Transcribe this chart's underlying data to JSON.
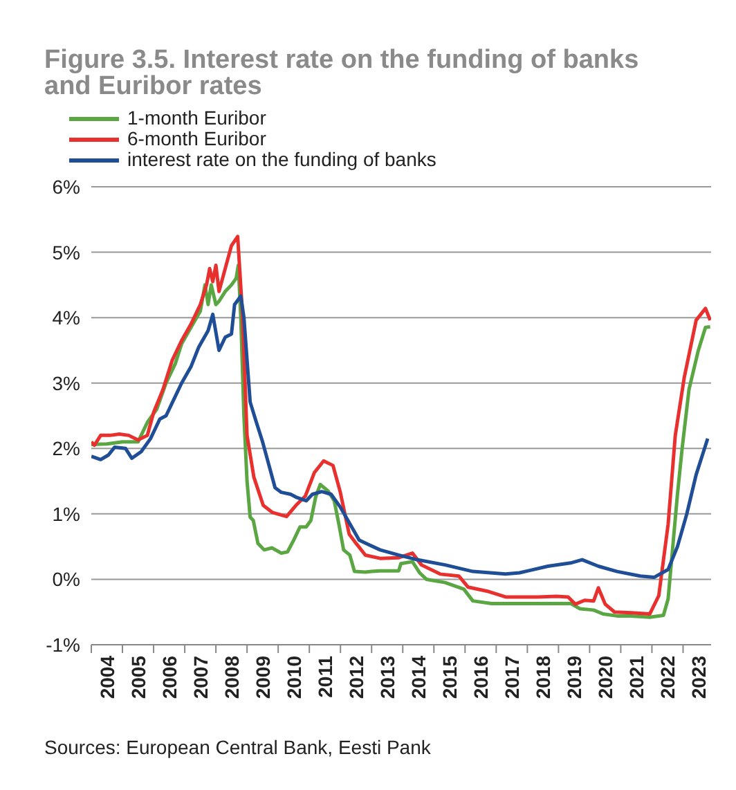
{
  "chart_data": {
    "type": "line",
    "title": "Figure 3.5. Interest rate on the funding of banks and Euribor rates",
    "annotations": [
      "Sources: European Central Bank, Eesti Pank"
    ],
    "legend": "top left",
    "grid": "y",
    "marker": "none",
    "line_style": "solid",
    "xlim": [
      2004,
      2023.9
    ],
    "xticks": [
      {
        "value": 2004,
        "label": null
      },
      {
        "value": 2004.5,
        "label": "2004"
      },
      {
        "value": 2005,
        "label": null
      },
      {
        "value": 2005.5,
        "label": "2005"
      },
      {
        "value": 2006,
        "label": null
      },
      {
        "value": 2006.5,
        "label": "2006"
      },
      {
        "value": 2007,
        "label": null
      },
      {
        "value": 2007.5,
        "label": "2007"
      },
      {
        "value": 2008,
        "label": null
      },
      {
        "value": 2008.5,
        "label": "2008"
      },
      {
        "value": 2009,
        "label": null
      },
      {
        "value": 2009.5,
        "label": "2009"
      },
      {
        "value": 2010,
        "label": null
      },
      {
        "value": 2010.5,
        "label": "2010"
      },
      {
        "value": 2011,
        "label": null
      },
      {
        "value": 2011.5,
        "label": "2011"
      },
      {
        "value": 2012,
        "label": null
      },
      {
        "value": 2012.5,
        "label": "2012"
      },
      {
        "value": 2013,
        "label": null
      },
      {
        "value": 2013.5,
        "label": "2013"
      },
      {
        "value": 2014,
        "label": null
      },
      {
        "value": 2014.5,
        "label": "2014"
      },
      {
        "value": 2015,
        "label": null
      },
      {
        "value": 2015.5,
        "label": "2015"
      },
      {
        "value": 2016,
        "label": null
      },
      {
        "value": 2016.5,
        "label": "2016"
      },
      {
        "value": 2017,
        "label": null
      },
      {
        "value": 2017.5,
        "label": "2017"
      },
      {
        "value": 2018,
        "label": null
      },
      {
        "value": 2018.5,
        "label": "2018"
      },
      {
        "value": 2019,
        "label": null
      },
      {
        "value": 2019.5,
        "label": "2019"
      },
      {
        "value": 2020,
        "label": null
      },
      {
        "value": 2020.5,
        "label": "2020"
      },
      {
        "value": 2021,
        "label": null
      },
      {
        "value": 2021.5,
        "label": "2021"
      },
      {
        "value": 2022,
        "label": null
      },
      {
        "value": 2022.5,
        "label": "2022"
      },
      {
        "value": 2023,
        "label": null
      },
      {
        "value": 2023.5,
        "label": "2023"
      }
    ],
    "ylim": [
      -1,
      6
    ],
    "yticks": [
      {
        "value": -1,
        "label": "-1%"
      },
      {
        "value": 0,
        "label": "0%"
      },
      {
        "value": 1,
        "label": "1%"
      },
      {
        "value": 2,
        "label": "2%"
      },
      {
        "value": 3,
        "label": "3%"
      },
      {
        "value": 4,
        "label": "4%"
      },
      {
        "value": 5,
        "label": "5%"
      },
      {
        "value": 6,
        "label": "6%"
      }
    ],
    "series": [
      {
        "name": "1-month Euribor",
        "color": "#5aa643",
        "x": [
          2004,
          2004.5,
          2005,
          2005.5,
          2005.8,
          2006.1,
          2006.4,
          2006.7,
          2006.9,
          2007.2,
          2007.5,
          2007.65,
          2007.75,
          2007.85,
          2008,
          2008.1,
          2008.3,
          2008.5,
          2008.65,
          2008.72,
          2008.8,
          2008.9,
          2009,
          2009.1,
          2009.2,
          2009.35,
          2009.55,
          2009.8,
          2010.1,
          2010.3,
          2010.5,
          2010.7,
          2010.9,
          2011.05,
          2011.2,
          2011.35,
          2011.6,
          2011.8,
          2011.95,
          2012.1,
          2012.3,
          2012.45,
          2012.8,
          2013,
          2013.27,
          2013.87,
          2013.94,
          2014.31,
          2014.54,
          2014.76,
          2015.36,
          2015.96,
          2016.25,
          2016.85,
          2018.34,
          2019.39,
          2019.69,
          2020.13,
          2020.43,
          2020.88,
          2021.33,
          2021.93,
          2022.37,
          2022.52,
          2022.67,
          2022.82,
          2022.97,
          2023.19,
          2023.49,
          2023.72,
          2023.87
        ],
        "values": [
          2.06,
          2.07,
          2.1,
          2.1,
          2.4,
          2.6,
          3.0,
          3.3,
          3.6,
          3.85,
          4.1,
          4.5,
          4.2,
          4.5,
          4.2,
          4.25,
          4.4,
          4.5,
          4.6,
          4.8,
          4.0,
          2.5,
          1.5,
          0.95,
          0.9,
          0.55,
          0.45,
          0.48,
          0.4,
          0.42,
          0.6,
          0.8,
          0.8,
          0.9,
          1.25,
          1.45,
          1.35,
          1.2,
          0.84,
          0.45,
          0.37,
          0.12,
          0.11,
          0.12,
          0.13,
          0.13,
          0.24,
          0.27,
          0.1,
          0.0,
          -0.05,
          -0.15,
          -0.33,
          -0.37,
          -0.37,
          -0.37,
          -0.45,
          -0.47,
          -0.53,
          -0.56,
          -0.56,
          -0.58,
          -0.55,
          -0.3,
          0.5,
          1.3,
          2.0,
          2.9,
          3.5,
          3.85,
          3.86
        ]
      },
      {
        "name": "6-month Euribor",
        "color": "#e8312f",
        "x": [
          2004,
          2004.1,
          2004.3,
          2004.6,
          2004.9,
          2005.2,
          2005.5,
          2005.8,
          2006,
          2006.3,
          2006.6,
          2006.9,
          2007.2,
          2007.5,
          2007.7,
          2007.8,
          2007.9,
          2008,
          2008.1,
          2008.3,
          2008.5,
          2008.7,
          2008.85,
          2009,
          2009.22,
          2009.52,
          2009.82,
          2010.27,
          2010.57,
          2010.87,
          2011.16,
          2011.46,
          2011.76,
          2011.99,
          2012.28,
          2012.5,
          2012.8,
          2013.27,
          2013.87,
          2014.31,
          2014.6,
          2015.2,
          2015.8,
          2016.1,
          2016.7,
          2017.3,
          2018.34,
          2018.94,
          2019.31,
          2019.54,
          2019.84,
          2020.13,
          2020.28,
          2020.5,
          2020.8,
          2021.33,
          2021.93,
          2022.22,
          2022.52,
          2022.75,
          2023.04,
          2023.42,
          2023.72,
          2023.87
        ],
        "values": [
          2.1,
          2.05,
          2.2,
          2.2,
          2.22,
          2.2,
          2.13,
          2.2,
          2.55,
          2.9,
          3.35,
          3.65,
          3.9,
          4.2,
          4.5,
          4.75,
          4.55,
          4.8,
          4.4,
          4.75,
          5.1,
          5.24,
          4.08,
          2.2,
          1.56,
          1.13,
          1.02,
          0.96,
          1.13,
          1.27,
          1.63,
          1.81,
          1.74,
          1.34,
          0.69,
          0.55,
          0.37,
          0.32,
          0.33,
          0.4,
          0.22,
          0.08,
          0.05,
          -0.12,
          -0.18,
          -0.27,
          -0.27,
          -0.26,
          -0.27,
          -0.38,
          -0.32,
          -0.33,
          -0.13,
          -0.38,
          -0.5,
          -0.51,
          -0.53,
          -0.25,
          0.84,
          2.2,
          3.09,
          3.96,
          4.14,
          3.96
        ]
      },
      {
        "name": "interest rate on the funding of banks",
        "color": "#1f4e96",
        "x": [
          2004,
          2004.3,
          2004.55,
          2004.75,
          2005.1,
          2005.3,
          2005.6,
          2005.9,
          2006.2,
          2006.4,
          2006.7,
          2006.9,
          2007.2,
          2007.45,
          2007.75,
          2007.9,
          2008.1,
          2008.3,
          2008.5,
          2008.6,
          2008.8,
          2008.9,
          2009.1,
          2009.3,
          2009.5,
          2009.7,
          2009.9,
          2010.1,
          2010.4,
          2010.6,
          2010.9,
          2011.1,
          2011.4,
          2011.7,
          2012,
          2012.3,
          2012.6,
          2012.82,
          2013.27,
          2013.87,
          2014.46,
          2015.36,
          2016.25,
          2017.3,
          2017.75,
          2018.66,
          2019.39,
          2019.76,
          2020.28,
          2020.88,
          2021.63,
          2022.07,
          2022.52,
          2022.82,
          2023.12,
          2023.42,
          2023.79
        ],
        "values": [
          1.88,
          1.83,
          1.9,
          2.02,
          2.0,
          1.85,
          1.95,
          2.15,
          2.45,
          2.5,
          2.8,
          3.0,
          3.25,
          3.55,
          3.8,
          4.05,
          3.5,
          3.7,
          3.75,
          4.2,
          4.33,
          4.0,
          2.71,
          2.4,
          2.1,
          1.75,
          1.4,
          1.33,
          1.3,
          1.25,
          1.2,
          1.3,
          1.34,
          1.3,
          1.1,
          0.85,
          0.6,
          0.55,
          0.45,
          0.37,
          0.3,
          0.22,
          0.12,
          0.08,
          0.1,
          0.2,
          0.25,
          0.3,
          0.2,
          0.12,
          0.05,
          0.03,
          0.15,
          0.5,
          1.0,
          1.6,
          2.15
        ]
      }
    ]
  }
}
